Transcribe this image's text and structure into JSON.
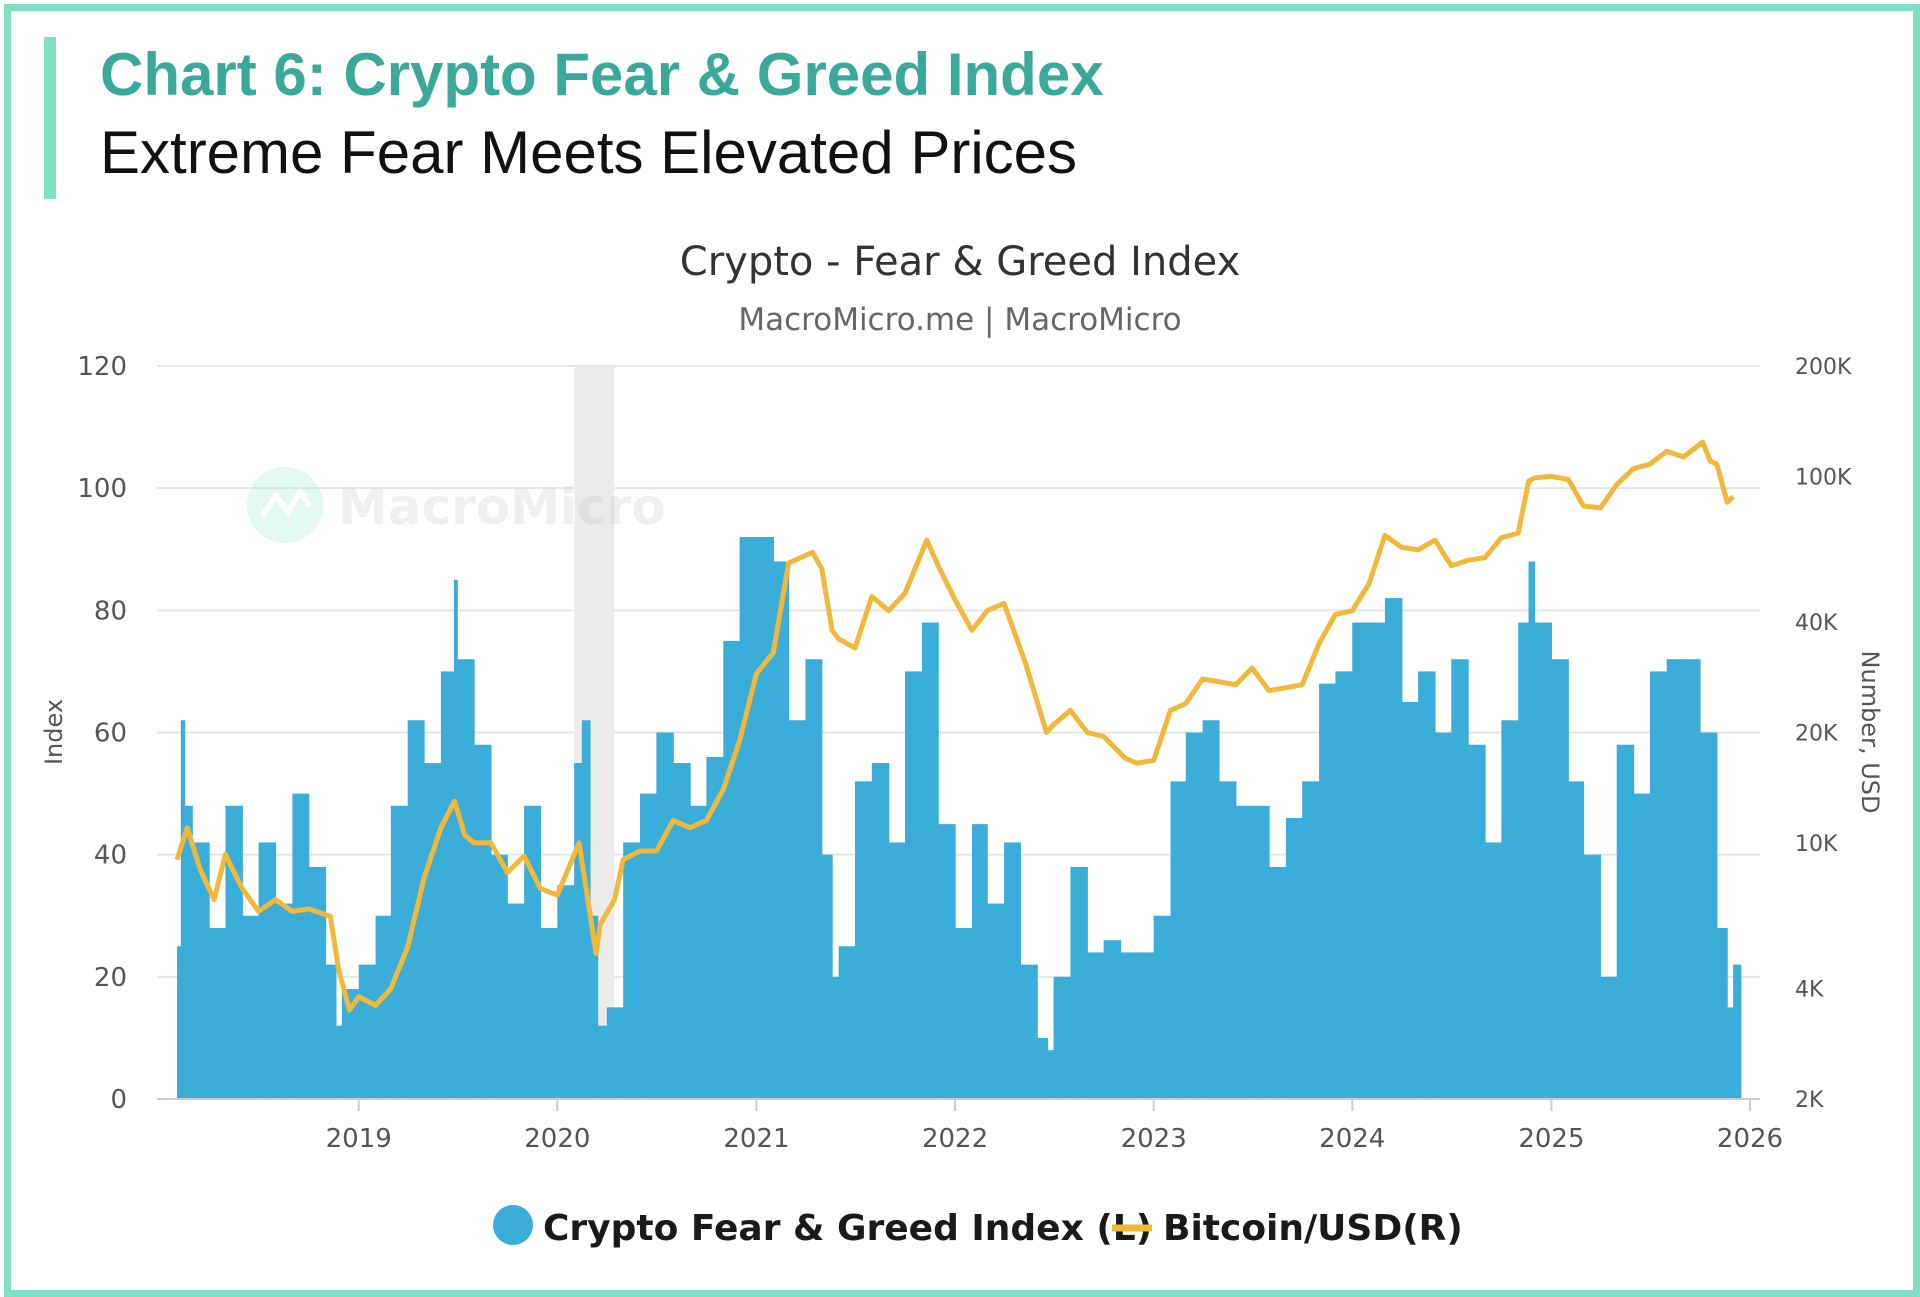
{
  "figure": {
    "title": "Chart 6: Crypto Fear & Greed Index",
    "subtitle": "Extreme Fear Meets Elevated Prices"
  },
  "colors": {
    "border": "#7fe0c4",
    "title": "#3aa99a",
    "bars": "#3badd9",
    "line": "#f2b83c",
    "shade": "#ebebeb",
    "grid": "#e6e6e6"
  },
  "chart_data": {
    "type": "bar",
    "title": "Crypto - Fear & Greed Index",
    "subtitle": "MacroMicro.me | MacroMicro",
    "watermark": "MacroMicro",
    "ylabel": "Index",
    "y2label": "Number, USD",
    "ylim": [
      0,
      120
    ],
    "y2lim": [
      2000,
      200000
    ],
    "y2_scale": "log",
    "xlim": [
      "2018-02-01",
      "2026-01-01"
    ],
    "grid": true,
    "legend_position": "bottom",
    "y_ticks": [
      "0",
      "20",
      "40",
      "60",
      "80",
      "100",
      "120"
    ],
    "y2_ticks": [
      {
        "value": 2000,
        "label": "2K"
      },
      {
        "value": 4000,
        "label": "4K"
      },
      {
        "value": 10000,
        "label": "10K"
      },
      {
        "value": 20000,
        "label": "20K"
      },
      {
        "value": 40000,
        "label": "40K"
      },
      {
        "value": 100000,
        "label": "100K"
      },
      {
        "value": 200000,
        "label": "200K"
      }
    ],
    "x_ticks": [
      "2019",
      "2020",
      "2021",
      "2022",
      "2023",
      "2024",
      "2025",
      "2026"
    ],
    "shaded_period": [
      "2020-02-01",
      "2020-04-15"
    ],
    "series": [
      {
        "name": "Crypto Fear & Greed Index (L)",
        "type": "bar",
        "axis": "left",
        "dates": [
          "2018-02-01",
          "2018-02-08",
          "2018-02-15",
          "2018-03-01",
          "2018-04-01",
          "2018-05-01",
          "2018-06-01",
          "2018-07-01",
          "2018-08-01",
          "2018-09-01",
          "2018-10-01",
          "2018-11-01",
          "2018-11-20",
          "2018-12-01",
          "2019-01-01",
          "2019-02-01",
          "2019-03-01",
          "2019-04-01",
          "2019-05-01",
          "2019-06-01",
          "2019-06-25",
          "2019-07-01",
          "2019-08-01",
          "2019-09-01",
          "2019-10-01",
          "2019-11-01",
          "2019-12-01",
          "2020-01-01",
          "2020-02-01",
          "2020-02-15",
          "2020-03-01",
          "2020-03-15",
          "2020-04-01",
          "2020-05-01",
          "2020-06-01",
          "2020-07-01",
          "2020-08-01",
          "2020-09-01",
          "2020-10-01",
          "2020-11-01",
          "2020-12-01",
          "2021-01-01",
          "2021-02-01",
          "2021-03-01",
          "2021-04-01",
          "2021-05-01",
          "2021-05-20",
          "2021-06-01",
          "2021-07-01",
          "2021-08-01",
          "2021-09-01",
          "2021-10-01",
          "2021-11-01",
          "2021-12-01",
          "2022-01-01",
          "2022-02-01",
          "2022-03-01",
          "2022-04-01",
          "2022-05-01",
          "2022-06-01",
          "2022-06-20",
          "2022-07-01",
          "2022-08-01",
          "2022-09-01",
          "2022-10-01",
          "2022-11-01",
          "2022-12-01",
          "2023-01-01",
          "2023-02-01",
          "2023-03-01",
          "2023-04-01",
          "2023-05-01",
          "2023-06-01",
          "2023-07-01",
          "2023-08-01",
          "2023-09-01",
          "2023-10-01",
          "2023-11-01",
          "2023-12-01",
          "2024-01-01",
          "2024-02-01",
          "2024-03-01",
          "2024-04-01",
          "2024-05-01",
          "2024-06-01",
          "2024-07-01",
          "2024-08-01",
          "2024-09-01",
          "2024-10-01",
          "2024-11-01",
          "2024-11-20",
          "2024-12-01",
          "2025-01-01",
          "2025-02-01",
          "2025-03-01",
          "2025-04-01",
          "2025-05-01",
          "2025-06-01",
          "2025-07-01",
          "2025-08-01",
          "2025-09-01",
          "2025-10-01",
          "2025-11-01",
          "2025-11-20",
          "2025-12-01"
        ],
        "values": [
          25,
          62,
          48,
          42,
          28,
          48,
          30,
          42,
          32,
          50,
          38,
          22,
          12,
          18,
          22,
          30,
          48,
          62,
          55,
          70,
          85,
          72,
          58,
          40,
          32,
          48,
          28,
          35,
          55,
          62,
          30,
          12,
          15,
          42,
          50,
          60,
          55,
          48,
          56,
          75,
          92,
          92,
          88,
          62,
          72,
          40,
          20,
          25,
          52,
          55,
          42,
          70,
          78,
          45,
          28,
          45,
          32,
          42,
          22,
          10,
          8,
          20,
          38,
          24,
          26,
          24,
          24,
          30,
          52,
          60,
          62,
          52,
          48,
          48,
          38,
          46,
          52,
          68,
          70,
          78,
          78,
          82,
          65,
          70,
          60,
          72,
          58,
          42,
          62,
          78,
          88,
          78,
          72,
          52,
          40,
          20,
          58,
          50,
          70,
          72,
          72,
          60,
          28,
          15,
          22
        ]
      },
      {
        "name": "Bitcoin/USD(R)",
        "type": "line",
        "axis": "right",
        "dates": [
          "2018-02-01",
          "2018-02-20",
          "2018-03-15",
          "2018-04-10",
          "2018-05-01",
          "2018-06-01",
          "2018-07-01",
          "2018-08-01",
          "2018-09-01",
          "2018-10-01",
          "2018-11-10",
          "2018-11-25",
          "2018-12-15",
          "2019-01-01",
          "2019-02-01",
          "2019-03-01",
          "2019-04-01",
          "2019-05-01",
          "2019-06-01",
          "2019-06-26",
          "2019-07-15",
          "2019-08-01",
          "2019-09-01",
          "2019-10-01",
          "2019-11-01",
          "2019-12-01",
          "2020-01-01",
          "2020-02-10",
          "2020-03-12",
          "2020-03-20",
          "2020-04-15",
          "2020-05-01",
          "2020-06-01",
          "2020-07-01",
          "2020-08-01",
          "2020-09-01",
          "2020-10-01",
          "2020-11-01",
          "2020-12-01",
          "2021-01-01",
          "2021-02-01",
          "2021-03-01",
          "2021-04-14",
          "2021-05-01",
          "2021-05-20",
          "2021-06-01",
          "2021-07-01",
          "2021-08-01",
          "2021-09-01",
          "2021-10-01",
          "2021-11-10",
          "2021-12-01",
          "2022-01-01",
          "2022-02-01",
          "2022-03-01",
          "2022-04-01",
          "2022-05-10",
          "2022-06-18",
          "2022-07-01",
          "2022-08-01",
          "2022-09-01",
          "2022-10-01",
          "2022-11-10",
          "2022-12-01",
          "2023-01-01",
          "2023-02-01",
          "2023-03-01",
          "2023-04-01",
          "2023-05-01",
          "2023-06-01",
          "2023-07-01",
          "2023-08-01",
          "2023-09-01",
          "2023-10-01",
          "2023-11-01",
          "2023-12-01",
          "2024-01-01",
          "2024-02-01",
          "2024-03-01",
          "2024-04-01",
          "2024-05-01",
          "2024-06-01",
          "2024-07-01",
          "2024-08-01",
          "2024-09-01",
          "2024-10-01",
          "2024-11-01",
          "2024-11-20",
          "2024-12-01",
          "2025-01-01",
          "2025-02-01",
          "2025-03-01",
          "2025-04-01",
          "2025-05-01",
          "2025-06-01",
          "2025-07-01",
          "2025-08-01",
          "2025-09-01",
          "2025-10-06",
          "2025-10-20",
          "2025-11-01",
          "2025-11-20",
          "2025-12-01"
        ],
        "values": [
          9000,
          11000,
          8500,
          7000,
          9300,
          7500,
          6500,
          7000,
          6500,
          6600,
          6300,
          4500,
          3500,
          3800,
          3600,
          4000,
          5200,
          8000,
          11000,
          13000,
          10500,
          10000,
          10000,
          8300,
          9200,
          7500,
          7200,
          10000,
          5000,
          6000,
          7000,
          9000,
          9500,
          9500,
          11500,
          11000,
          11500,
          14000,
          19000,
          29000,
          33000,
          58000,
          62000,
          56000,
          38000,
          36000,
          34000,
          47000,
          43000,
          48000,
          67000,
          57000,
          46000,
          38000,
          43000,
          45000,
          31000,
          20000,
          21000,
          23000,
          20000,
          19500,
          17000,
          16500,
          16800,
          23000,
          24000,
          28000,
          27500,
          27000,
          30000,
          26000,
          26500,
          27000,
          35000,
          42000,
          43000,
          51000,
          69000,
          64000,
          63000,
          67000,
          57000,
          59000,
          60000,
          68000,
          70000,
          97000,
          99000,
          100000,
          98000,
          83000,
          82000,
          95000,
          105000,
          108000,
          117000,
          113000,
          124000,
          110000,
          108000,
          85000,
          88000
        ]
      }
    ]
  }
}
